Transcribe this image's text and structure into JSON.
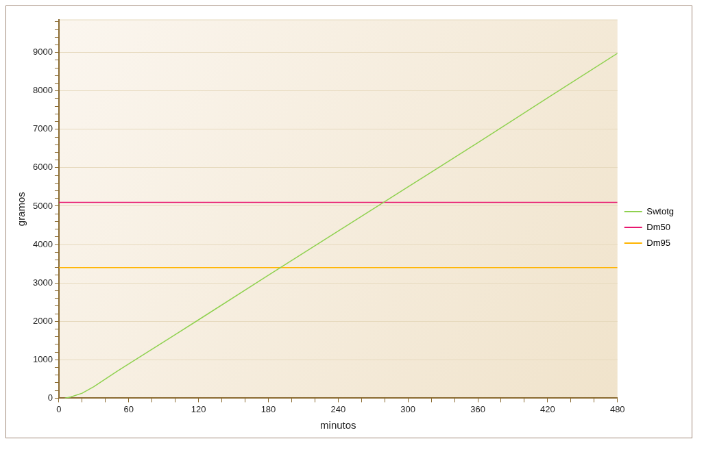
{
  "chart_data": {
    "type": "line",
    "xlabel": "minutos",
    "ylabel": "gramos",
    "xlim": [
      0,
      480
    ],
    "ylim": [
      0,
      9850
    ],
    "xticks": [
      0,
      {
        "value": 20,
        "label": null
      },
      {
        "value": 40,
        "label": null
      },
      60,
      {
        "value": 80,
        "label": null
      },
      {
        "value": 100,
        "label": null
      },
      120,
      {
        "value": 140,
        "label": null
      },
      {
        "value": 160,
        "label": null
      },
      180,
      {
        "value": 200,
        "label": null
      },
      {
        "value": 220,
        "label": null
      },
      240,
      {
        "value": 260,
        "label": null
      },
      {
        "value": 280,
        "label": null
      },
      300,
      {
        "value": 320,
        "label": null
      },
      {
        "value": 340,
        "label": null
      },
      360,
      {
        "value": 380,
        "label": null
      },
      {
        "value": 400,
        "label": null
      },
      420,
      {
        "value": 440,
        "label": null
      },
      {
        "value": 460,
        "label": null
      },
      480
    ],
    "yticks": [
      0,
      {
        "value": 200,
        "label": null
      },
      {
        "value": 400,
        "label": null
      },
      {
        "value": 600,
        "label": null
      },
      {
        "value": 800,
        "label": null
      },
      1000,
      {
        "value": 1200,
        "label": null
      },
      {
        "value": 1400,
        "label": null
      },
      {
        "value": 1600,
        "label": null
      },
      {
        "value": 1800,
        "label": null
      },
      2000,
      {
        "value": 2200,
        "label": null
      },
      {
        "value": 2400,
        "label": null
      },
      {
        "value": 2600,
        "label": null
      },
      {
        "value": 2800,
        "label": null
      },
      3000,
      {
        "value": 3200,
        "label": null
      },
      {
        "value": 3400,
        "label": null
      },
      {
        "value": 3600,
        "label": null
      },
      {
        "value": 3800,
        "label": null
      },
      4000,
      {
        "value": 4200,
        "label": null
      },
      {
        "value": 4400,
        "label": null
      },
      {
        "value": 4600,
        "label": null
      },
      {
        "value": 4800,
        "label": null
      },
      5000,
      {
        "value": 5200,
        "label": null
      },
      {
        "value": 5400,
        "label": null
      },
      {
        "value": 5600,
        "label": null
      },
      {
        "value": 5800,
        "label": null
      },
      6000,
      {
        "value": 6200,
        "label": null
      },
      {
        "value": 6400,
        "label": null
      },
      {
        "value": 6600,
        "label": null
      },
      {
        "value": 6800,
        "label": null
      },
      7000,
      {
        "value": 7200,
        "label": null
      },
      {
        "value": 7400,
        "label": null
      },
      {
        "value": 7600,
        "label": null
      },
      {
        "value": 7800,
        "label": null
      },
      8000,
      {
        "value": 8200,
        "label": null
      },
      {
        "value": 8400,
        "label": null
      },
      {
        "value": 8600,
        "label": null
      },
      {
        "value": 8800,
        "label": null
      },
      9000,
      {
        "value": 9200,
        "label": null
      },
      {
        "value": 9400,
        "label": null
      },
      {
        "value": 9600,
        "label": null
      },
      {
        "value": 9800,
        "label": null
      }
    ],
    "grid": "y",
    "legend": "right",
    "marker": "none",
    "line_style": "solid",
    "series": [
      {
        "name": "Swtotg",
        "color": "#8fd14f",
        "x": [
          5,
          10,
          20,
          30,
          40,
          50,
          60,
          120,
          180,
          240,
          300,
          360,
          420,
          480
        ],
        "values": [
          0,
          30,
          130,
          300,
          500,
          700,
          890,
          2040,
          3200,
          4350,
          5500,
          6650,
          7820,
          8980
        ]
      },
      {
        "name": "Dm50",
        "color": "#e8176f",
        "x": [
          0,
          480
        ],
        "values": [
          5100,
          5100
        ]
      },
      {
        "name": "Dm95",
        "color": "#ffb400",
        "x": [
          0,
          480
        ],
        "values": [
          3400,
          3400
        ]
      }
    ]
  }
}
